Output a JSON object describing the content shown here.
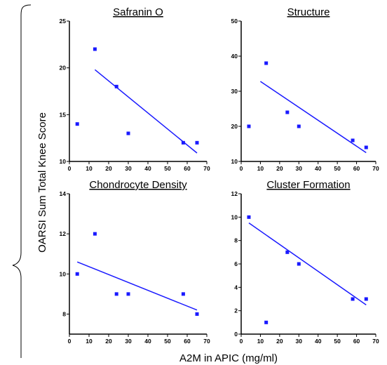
{
  "figure": {
    "ylabel": "OARSI Sum Total Knee Score",
    "xlabel": "A2M in APIC (mg/ml)",
    "marker_color": "#1a1aff",
    "line_color": "#1a1aff"
  },
  "chart_data": [
    {
      "type": "scatter",
      "title": "Safranin O",
      "xlim": [
        0,
        70
      ],
      "ylim": [
        10,
        25
      ],
      "xticks": [
        "0",
        "10",
        "20",
        "30",
        "40",
        "50",
        "60",
        "70"
      ],
      "yticks": [
        "10",
        "15",
        "20",
        "25"
      ],
      "x": [
        4,
        13,
        24,
        30,
        58,
        65
      ],
      "y": [
        14,
        22,
        18,
        13,
        12,
        12
      ],
      "trendline": {
        "x": [
          13,
          65
        ],
        "y": [
          19.8,
          10.9
        ]
      }
    },
    {
      "type": "scatter",
      "title": "Structure",
      "xlim": [
        0,
        70
      ],
      "ylim": [
        10,
        50
      ],
      "xticks": [
        "0",
        "10",
        "20",
        "30",
        "40",
        "50",
        "60",
        "70"
      ],
      "yticks": [
        "10",
        "20",
        "30",
        "40",
        "50"
      ],
      "x": [
        4,
        13,
        24,
        30,
        58,
        65
      ],
      "y": [
        20,
        38,
        24,
        20,
        16,
        14
      ],
      "trendline": {
        "x": [
          10,
          65
        ],
        "y": [
          32.8,
          12.5
        ]
      }
    },
    {
      "type": "scatter",
      "title": "Chondrocyte Density",
      "xlim": [
        0,
        70
      ],
      "ylim": [
        7,
        14
      ],
      "xticks": [
        "0",
        "10",
        "20",
        "30",
        "40",
        "50",
        "60",
        "70"
      ],
      "yticks": [
        "8",
        "10",
        "12",
        "14"
      ],
      "x": [
        4,
        13,
        24,
        30,
        58,
        65
      ],
      "y": [
        10,
        12,
        9,
        9,
        9,
        8
      ],
      "trendline": {
        "x": [
          4,
          65
        ],
        "y": [
          10.6,
          8.2
        ]
      }
    },
    {
      "type": "scatter",
      "title": "Cluster Formation",
      "xlim": [
        0,
        70
      ],
      "ylim": [
        0,
        12
      ],
      "xticks": [
        "0",
        "10",
        "20",
        "30",
        "40",
        "50",
        "60",
        "70"
      ],
      "yticks": [
        "0",
        "2",
        "4",
        "6",
        "8",
        "10",
        "12"
      ],
      "x": [
        4,
        13,
        24,
        30,
        58,
        65
      ],
      "y": [
        10,
        1,
        7,
        6,
        3,
        3
      ],
      "trendline": {
        "x": [
          4,
          65
        ],
        "y": [
          9.5,
          2.5
        ]
      }
    }
  ]
}
